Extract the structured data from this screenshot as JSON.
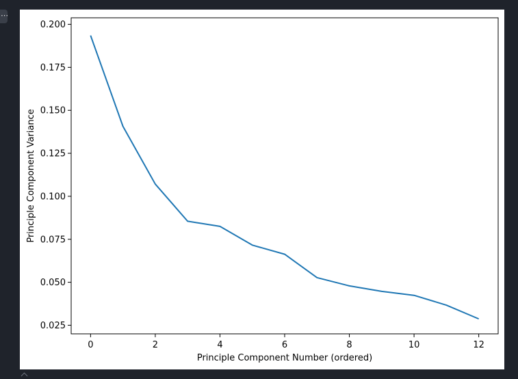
{
  "toolbar": {
    "more_label": "⋯"
  },
  "colors": {
    "page_background": "#1f232b",
    "figure_background": "#ffffff",
    "line": "#1f77b4",
    "axis": "#000000"
  },
  "chart_data": {
    "type": "line",
    "title": "",
    "xlabel": "Principle Component Number (ordered)",
    "ylabel": "Principle Component Variance",
    "xlim": [
      -0.6,
      12.6
    ],
    "ylim": [
      0.02,
      0.2038
    ],
    "x_ticks": [
      0,
      2,
      4,
      6,
      8,
      10,
      12
    ],
    "x_tick_labels": [
      "0",
      "2",
      "4",
      "6",
      "8",
      "10",
      "12"
    ],
    "y_ticks": [
      0.025,
      0.05,
      0.075,
      0.1,
      0.125,
      0.15,
      0.175,
      0.2
    ],
    "y_tick_labels": [
      "0.025",
      "0.050",
      "0.075",
      "0.100",
      "0.125",
      "0.150",
      "0.175",
      "0.200"
    ],
    "grid": false,
    "legend": "none",
    "series": [
      {
        "x": [
          0,
          1,
          2,
          3,
          4,
          5,
          6,
          7,
          8,
          9,
          10,
          11,
          12
        ],
        "values": [
          0.1935,
          0.1407,
          0.1071,
          0.0855,
          0.0825,
          0.0716,
          0.0663,
          0.0527,
          0.0479,
          0.0447,
          0.0424,
          0.0367,
          0.0287
        ]
      }
    ]
  }
}
